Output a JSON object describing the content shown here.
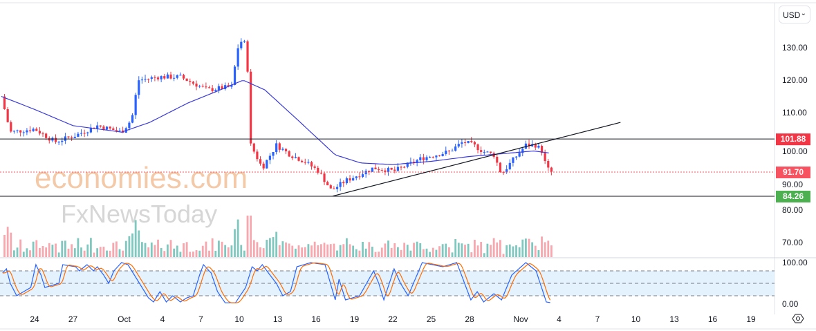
{
  "currency_selector": {
    "label": "USD",
    "icon": "chevron-down-icon"
  },
  "watermark": {
    "line1": "economies.com",
    "line2": "FxNewsToday"
  },
  "settings_icon": "gear-hexagon-icon",
  "chart_data": {
    "type": "candlestick",
    "price_axis": {
      "ticks": [
        "130.00",
        "120.00",
        "110.00",
        "100.00",
        "90.00",
        "80.00",
        "70.00"
      ],
      "tick_values": [
        130,
        120,
        110,
        100,
        90,
        80,
        70
      ],
      "ylim": [
        66,
        137
      ]
    },
    "time_axis": {
      "ticks": [
        {
          "label": "24",
          "day": 0
        },
        {
          "label": "27",
          "day": 3
        },
        {
          "label": "Oct",
          "day": 7
        },
        {
          "label": "4",
          "day": 10
        },
        {
          "label": "7",
          "day": 13
        },
        {
          "label": "10",
          "day": 16
        },
        {
          "label": "13",
          "day": 19
        },
        {
          "label": "16",
          "day": 22
        },
        {
          "label": "19",
          "day": 25
        },
        {
          "label": "22",
          "day": 28
        },
        {
          "label": "25",
          "day": 31
        },
        {
          "label": "28",
          "day": 34
        },
        {
          "label": "Nov",
          "day": 38
        },
        {
          "label": "4",
          "day": 41
        },
        {
          "label": "7",
          "day": 44
        },
        {
          "label": "10",
          "day": 47
        },
        {
          "label": "13",
          "day": 50
        },
        {
          "label": "16",
          "day": 53
        },
        {
          "label": "19",
          "day": 56
        }
      ]
    },
    "price_path": [
      [
        -2.6,
        115
      ],
      [
        -1.9,
        104
      ],
      [
        0,
        105
      ],
      [
        1.6,
        101
      ],
      [
        3.2,
        103
      ],
      [
        4.9,
        106
      ],
      [
        6.8,
        104
      ],
      [
        7.6,
        108
      ],
      [
        8.1,
        120
      ],
      [
        9.7,
        121
      ],
      [
        11.4,
        121
      ],
      [
        13.5,
        117
      ],
      [
        15.4,
        118
      ],
      [
        15.9,
        130
      ],
      [
        16.3,
        133
      ],
      [
        16.6,
        128
      ],
      [
        16.9,
        100
      ],
      [
        17.8,
        93
      ],
      [
        18.9,
        100
      ],
      [
        20,
        97
      ],
      [
        21.1,
        95
      ],
      [
        22.2,
        92
      ],
      [
        23.2,
        86
      ],
      [
        24.3,
        89
      ],
      [
        26.5,
        93
      ],
      [
        28.1,
        92
      ],
      [
        30.3,
        96
      ],
      [
        32.4,
        98
      ],
      [
        33.5,
        101
      ],
      [
        34.3,
        100
      ],
      [
        35.1,
        98
      ],
      [
        35.9,
        97
      ],
      [
        36.5,
        91
      ],
      [
        37.3,
        95
      ],
      [
        38.4,
        100
      ],
      [
        39.2,
        100
      ],
      [
        39.7,
        98
      ],
      [
        40,
        93
      ],
      [
        40.4,
        91.7
      ]
    ],
    "moving_average": [
      [
        -2.6,
        115
      ],
      [
        0,
        111
      ],
      [
        3,
        106
      ],
      [
        6.8,
        104
      ],
      [
        9,
        107
      ],
      [
        12,
        113
      ],
      [
        14.5,
        117
      ],
      [
        16.3,
        120
      ],
      [
        18,
        117
      ],
      [
        20.5,
        108
      ],
      [
        23.5,
        97
      ],
      [
        25.5,
        94.5
      ],
      [
        28,
        94
      ],
      [
        31,
        95
      ],
      [
        34,
        96.5
      ],
      [
        37,
        97.5
      ],
      [
        39,
        98.2
      ],
      [
        40.4,
        97.5
      ]
    ],
    "horizontal_levels": [
      {
        "value": 101.88,
        "label": "101.88",
        "color": "#f23645",
        "style": "solid"
      },
      {
        "value": 91.7,
        "label": "91.70",
        "color": "#f7525f",
        "style": "dotted"
      },
      {
        "value": 84.26,
        "label": "84.26",
        "color": "#4caf50",
        "style": "solid"
      }
    ],
    "trendline": [
      [
        23.3,
        84.3
      ],
      [
        45.8,
        107
      ]
    ],
    "stochastic": {
      "axis_ticks": [
        "100.00",
        "0.00"
      ],
      "bands": [
        80,
        50,
        20
      ],
      "k": [
        [
          -2.5,
          75
        ],
        [
          -2.2,
          85
        ],
        [
          -1.9,
          50
        ],
        [
          -1.4,
          20
        ],
        [
          -0.3,
          40
        ],
        [
          0.1,
          95
        ],
        [
          0.5,
          70
        ],
        [
          0.8,
          40
        ],
        [
          1.9,
          50
        ],
        [
          2.2,
          95
        ],
        [
          3.2,
          90
        ],
        [
          3.5,
          80
        ],
        [
          4.1,
          95
        ],
        [
          4.6,
          80
        ],
        [
          4.9,
          90
        ],
        [
          5.4,
          70
        ],
        [
          5.8,
          50
        ],
        [
          6.2,
          80
        ],
        [
          6.8,
          100
        ],
        [
          7.3,
          95
        ],
        [
          7.8,
          70
        ],
        [
          8.4,
          40
        ],
        [
          8.9,
          15
        ],
        [
          9.3,
          5
        ],
        [
          9.8,
          30
        ],
        [
          10.3,
          5
        ],
        [
          10.8,
          20
        ],
        [
          11.4,
          5
        ],
        [
          11.9,
          15
        ],
        [
          12.4,
          20
        ],
        [
          12.9,
          70
        ],
        [
          13.2,
          95
        ],
        [
          13.8,
          75
        ],
        [
          14.3,
          30
        ],
        [
          14.9,
          3
        ],
        [
          15.7,
          3
        ],
        [
          16.5,
          40
        ],
        [
          17,
          90
        ],
        [
          17.4,
          80
        ],
        [
          17.8,
          95
        ],
        [
          18.4,
          70
        ],
        [
          18.9,
          50
        ],
        [
          19.4,
          20
        ],
        [
          20,
          30
        ],
        [
          20.5,
          90
        ],
        [
          21.6,
          100
        ],
        [
          22.7,
          95
        ],
        [
          23.5,
          10
        ],
        [
          23.8,
          60
        ],
        [
          24.3,
          10
        ],
        [
          25.4,
          20
        ],
        [
          26.5,
          80
        ],
        [
          26.9,
          50
        ],
        [
          27.3,
          10
        ],
        [
          28.1,
          85
        ],
        [
          28.6,
          50
        ],
        [
          29.2,
          20
        ],
        [
          30.3,
          100
        ],
        [
          31.9,
          90
        ],
        [
          33,
          100
        ],
        [
          34.1,
          10
        ],
        [
          34.6,
          30
        ],
        [
          35.1,
          5
        ],
        [
          35.9,
          25
        ],
        [
          36.5,
          10
        ],
        [
          37.3,
          70
        ],
        [
          38.4,
          100
        ],
        [
          39.2,
          80
        ],
        [
          40,
          5
        ],
        [
          40.4,
          3
        ]
      ]
    },
    "colors": {
      "up": "#2962ff",
      "down": "#f23645",
      "ma": "#3b3bd9",
      "k": "#2962ff",
      "d": "#ff6d00",
      "vol_up": "#7fc8c0",
      "vol_down": "#f7a7ad",
      "band": "#e3f2fd"
    }
  }
}
